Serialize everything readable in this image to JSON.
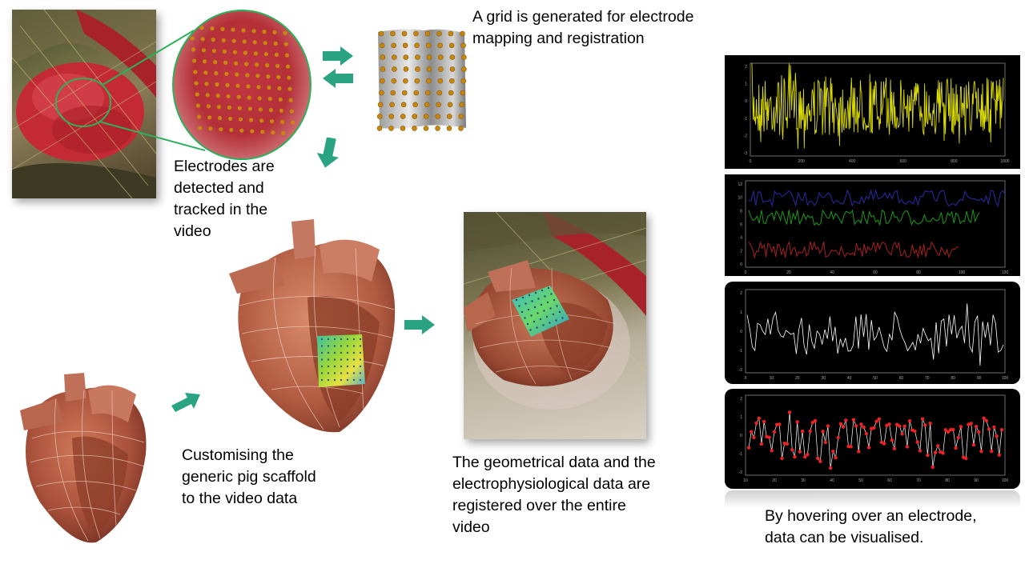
{
  "captions": {
    "grid": "A grid is generated for electrode\nmapping and registration",
    "detect": "Electrodes are\ndetected and\ntracked in the\nvideo",
    "customise": "Customising the\ngeneric pig scaffold\nto the video data",
    "register": "The geometrical data and the\nelectrophysiological data are\nregistered over the entire\nvideo",
    "hover": "By hovering over an electrode,\ndata can be visualised."
  },
  "colors": {
    "arrow": "#2aa383",
    "callout": "#2db05b",
    "tissue": "#c42a35",
    "heart": "#b5523a",
    "electrode": "#c8860d"
  },
  "plots": [
    {
      "id": "plot1",
      "style": "line",
      "line_color": "#dcdc00",
      "x_ticks": [
        "0",
        "200",
        "400",
        "600",
        "800",
        "1000"
      ],
      "y_ticks": [
        "2",
        "1",
        "0",
        "-1",
        "-2",
        "-3"
      ]
    },
    {
      "id": "plot2",
      "style": "multi-line",
      "line_colors": [
        "#2a2aa8",
        "#1a9a1a",
        "#a82020"
      ],
      "x_ticks": [
        "0",
        "20",
        "40",
        "60",
        "80",
        "100",
        "120"
      ],
      "y_ticks": [
        "12",
        "10",
        "8",
        "6",
        "4",
        "2",
        "0"
      ]
    },
    {
      "id": "plot3",
      "style": "line",
      "line_color": "#ffffff",
      "x_ticks": [
        "0",
        "10",
        "20",
        "30",
        "40",
        "50",
        "60",
        "70",
        "80",
        "90",
        "100"
      ],
      "y_ticks": [
        "2",
        "1",
        "0",
        "-1",
        "-2"
      ]
    },
    {
      "id": "plot4",
      "style": "line-markers",
      "line_color": "#ffffff",
      "marker_color": "#ee2222",
      "x_ticks": [
        "10",
        "20",
        "30",
        "40",
        "50",
        "60",
        "70",
        "80",
        "90",
        "100"
      ],
      "y_ticks": [
        "2",
        "1",
        "0",
        "-1",
        "-2"
      ]
    }
  ]
}
